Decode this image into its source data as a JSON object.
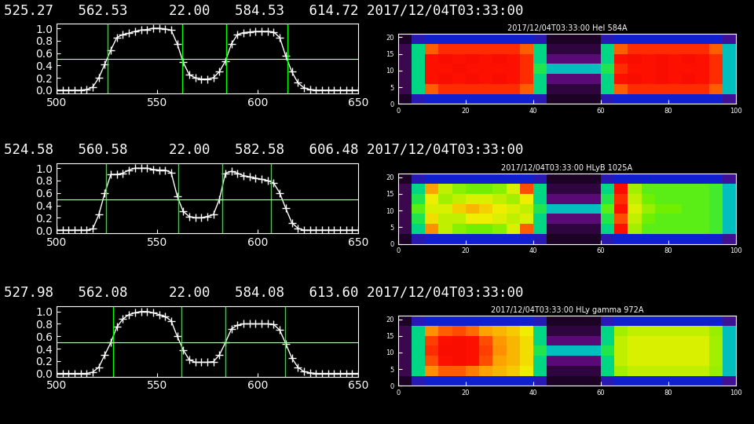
{
  "chart_data": [
    {
      "type": "line",
      "header": "525.27   562.53     22.00   584.53   614.72 2017/12/04T03:33:00",
      "x": [
        500,
        503,
        506,
        509,
        512,
        515,
        518,
        521,
        524,
        527,
        530,
        533,
        536,
        539,
        542,
        545,
        548,
        551,
        554,
        557,
        560,
        563,
        566,
        569,
        572,
        575,
        578,
        581,
        584,
        587,
        590,
        593,
        596,
        599,
        602,
        605,
        608,
        611,
        614,
        617,
        620,
        623,
        626,
        629,
        632,
        635,
        638,
        641,
        644,
        647,
        650
      ],
      "values": [
        0,
        0,
        0,
        0,
        0,
        0.01,
        0.05,
        0.2,
        0.42,
        0.65,
        0.85,
        0.9,
        0.92,
        0.95,
        0.97,
        0.98,
        1.0,
        1.0,
        0.99,
        0.97,
        0.75,
        0.45,
        0.25,
        0.2,
        0.18,
        0.18,
        0.2,
        0.3,
        0.47,
        0.75,
        0.9,
        0.93,
        0.94,
        0.95,
        0.95,
        0.95,
        0.94,
        0.85,
        0.55,
        0.3,
        0.12,
        0.04,
        0.01,
        0,
        0,
        0,
        0,
        0,
        0,
        0,
        0
      ],
      "vlines": [
        525.27,
        562.53,
        584.53,
        614.72
      ],
      "hlines": [
        0.5
      ],
      "color": "#ffffff",
      "marker": "plus",
      "line_style": "solid",
      "xlim": [
        500,
        650
      ],
      "ylim": [
        -0.05,
        1.08
      ],
      "xticks": [
        500,
        550,
        600,
        650
      ],
      "yticks": [
        {
          "value": 0,
          "label": "0.0"
        },
        {
          "value": 0.2,
          "label": "0.2"
        },
        {
          "value": 0.4,
          "label": "0.4"
        },
        {
          "value": 0.6,
          "label": "0.6"
        },
        {
          "value": 0.8,
          "label": "0.8"
        },
        {
          "value": 1,
          "label": "1.0"
        }
      ]
    },
    {
      "type": "heatmap",
      "title": "2017/12/04T03:33:00 HeI 584A",
      "x_edges": [
        0,
        4,
        8,
        12,
        16,
        20,
        24,
        28,
        32,
        36,
        40,
        44,
        48,
        52,
        56,
        60,
        64,
        68,
        72,
        76,
        80,
        84,
        88,
        92,
        96,
        100
      ],
      "y_edges": [
        0,
        3,
        6,
        9,
        12,
        15,
        18,
        21
      ],
      "cells": [
        [
          0.05,
          0.25,
          0.3,
          0.3,
          0.3,
          0.3,
          0.3,
          0.3,
          0.3,
          0.3,
          0.25,
          0.05,
          0.05,
          0.05,
          0.05,
          0.25,
          0.3,
          0.3,
          0.3,
          0.3,
          0.3,
          0.3,
          0.3,
          0.3,
          0.2
        ],
        [
          0.1,
          0.5,
          0.85,
          0.88,
          0.88,
          0.88,
          0.88,
          0.88,
          0.88,
          0.85,
          0.5,
          0.08,
          0.08,
          0.08,
          0.08,
          0.5,
          0.85,
          0.88,
          0.88,
          0.88,
          0.88,
          0.88,
          0.88,
          0.85,
          0.45
        ],
        [
          0.1,
          0.5,
          0.9,
          0.92,
          0.9,
          0.92,
          0.9,
          0.92,
          0.9,
          0.88,
          0.5,
          0.15,
          0.15,
          0.15,
          0.15,
          0.5,
          0.9,
          0.92,
          0.9,
          0.92,
          0.9,
          0.92,
          0.9,
          0.88,
          0.45
        ],
        [
          0.1,
          0.5,
          0.9,
          0.9,
          0.92,
          0.9,
          0.9,
          0.9,
          0.9,
          0.88,
          0.55,
          0.45,
          0.45,
          0.45,
          0.45,
          0.55,
          0.88,
          0.9,
          0.9,
          0.92,
          0.9,
          0.9,
          0.9,
          0.88,
          0.45
        ],
        [
          0.1,
          0.5,
          0.9,
          0.92,
          0.9,
          0.92,
          0.9,
          0.92,
          0.9,
          0.88,
          0.5,
          0.15,
          0.15,
          0.15,
          0.15,
          0.5,
          0.9,
          0.92,
          0.9,
          0.92,
          0.9,
          0.92,
          0.9,
          0.88,
          0.45
        ],
        [
          0.1,
          0.5,
          0.85,
          0.88,
          0.88,
          0.88,
          0.88,
          0.88,
          0.88,
          0.85,
          0.5,
          0.08,
          0.08,
          0.08,
          0.08,
          0.5,
          0.85,
          0.88,
          0.88,
          0.88,
          0.88,
          0.88,
          0.88,
          0.85,
          0.45
        ],
        [
          0.05,
          0.25,
          0.3,
          0.3,
          0.3,
          0.3,
          0.3,
          0.3,
          0.3,
          0.3,
          0.25,
          0.05,
          0.05,
          0.05,
          0.05,
          0.25,
          0.3,
          0.3,
          0.3,
          0.3,
          0.3,
          0.3,
          0.3,
          0.3,
          0.2
        ]
      ],
      "zlim": [
        0,
        1
      ],
      "xlim": [
        0,
        100
      ],
      "ylim": [
        0,
        21
      ],
      "xticks": [
        0,
        20,
        40,
        60,
        80,
        100
      ],
      "yticks": [
        0,
        5,
        10,
        15,
        20
      ]
    },
    {
      "type": "line",
      "header": "524.58   560.58     22.00   582.58   606.48 2017/12/04T03:33:00",
      "x": [
        500,
        503,
        506,
        509,
        512,
        515,
        518,
        521,
        524,
        527,
        530,
        533,
        536,
        539,
        542,
        545,
        548,
        551,
        554,
        557,
        560,
        563,
        566,
        569,
        572,
        575,
        578,
        581,
        584,
        587,
        590,
        593,
        596,
        599,
        602,
        605,
        608,
        611,
        614,
        617,
        620,
        623,
        626,
        629,
        632,
        635,
        638,
        641,
        644,
        647,
        650
      ],
      "values": [
        0,
        0,
        0,
        0,
        0,
        0,
        0.02,
        0.25,
        0.6,
        0.9,
        0.9,
        0.92,
        0.97,
        1.0,
        1.0,
        1.0,
        0.98,
        0.97,
        0.97,
        0.93,
        0.55,
        0.3,
        0.22,
        0.2,
        0.2,
        0.22,
        0.25,
        0.5,
        0.92,
        0.95,
        0.92,
        0.88,
        0.86,
        0.84,
        0.82,
        0.8,
        0.76,
        0.6,
        0.35,
        0.12,
        0.03,
        0,
        0,
        0,
        0,
        0,
        0,
        0,
        0,
        0,
        0
      ],
      "vlines": [
        524.58,
        560.58,
        582.58,
        606.48
      ],
      "hlines": [
        0.5
      ],
      "color": "#ffffff",
      "marker": "plus",
      "line_style": "solid",
      "xlim": [
        500,
        650
      ],
      "ylim": [
        -0.05,
        1.08
      ],
      "xticks": [
        500,
        550,
        600,
        650
      ],
      "yticks": [
        {
          "value": 0,
          "label": "0.0"
        },
        {
          "value": 0.2,
          "label": "0.2"
        },
        {
          "value": 0.4,
          "label": "0.4"
        },
        {
          "value": 0.6,
          "label": "0.6"
        },
        {
          "value": 0.8,
          "label": "0.8"
        },
        {
          "value": 1,
          "label": "1.0"
        }
      ]
    },
    {
      "type": "heatmap",
      "title": "2017/12/04T03:33:00 HLyB 1025A",
      "x_edges": [
        0,
        4,
        8,
        12,
        16,
        20,
        24,
        28,
        32,
        36,
        40,
        44,
        48,
        52,
        56,
        60,
        64,
        68,
        72,
        76,
        80,
        84,
        88,
        92,
        96,
        100
      ],
      "y_edges": [
        0,
        3,
        6,
        9,
        12,
        15,
        18,
        21
      ],
      "cells": [
        [
          0.05,
          0.25,
          0.3,
          0.3,
          0.3,
          0.3,
          0.3,
          0.3,
          0.3,
          0.3,
          0.25,
          0.05,
          0.05,
          0.05,
          0.05,
          0.25,
          0.3,
          0.3,
          0.3,
          0.3,
          0.3,
          0.3,
          0.3,
          0.3,
          0.2
        ],
        [
          0.1,
          0.5,
          0.82,
          0.68,
          0.64,
          0.62,
          0.62,
          0.64,
          0.7,
          0.85,
          0.5,
          0.08,
          0.08,
          0.08,
          0.08,
          0.5,
          0.9,
          0.66,
          0.6,
          0.6,
          0.6,
          0.6,
          0.6,
          0.58,
          0.45
        ],
        [
          0.1,
          0.55,
          0.74,
          0.68,
          0.68,
          0.72,
          0.72,
          0.7,
          0.68,
          0.7,
          0.5,
          0.15,
          0.15,
          0.15,
          0.15,
          0.55,
          0.86,
          0.68,
          0.62,
          0.6,
          0.6,
          0.6,
          0.6,
          0.58,
          0.45
        ],
        [
          0.1,
          0.6,
          0.7,
          0.7,
          0.75,
          0.78,
          0.75,
          0.72,
          0.7,
          0.68,
          0.55,
          0.45,
          0.45,
          0.45,
          0.45,
          0.6,
          0.9,
          0.7,
          0.65,
          0.62,
          0.62,
          0.6,
          0.6,
          0.58,
          0.45
        ],
        [
          0.1,
          0.55,
          0.72,
          0.66,
          0.68,
          0.7,
          0.7,
          0.68,
          0.66,
          0.72,
          0.5,
          0.15,
          0.15,
          0.15,
          0.15,
          0.55,
          0.88,
          0.68,
          0.62,
          0.6,
          0.6,
          0.6,
          0.6,
          0.58,
          0.45
        ],
        [
          0.1,
          0.5,
          0.8,
          0.68,
          0.64,
          0.62,
          0.62,
          0.64,
          0.7,
          0.86,
          0.5,
          0.08,
          0.08,
          0.08,
          0.08,
          0.5,
          0.92,
          0.66,
          0.6,
          0.6,
          0.6,
          0.6,
          0.6,
          0.58,
          0.45
        ],
        [
          0.05,
          0.25,
          0.3,
          0.3,
          0.3,
          0.3,
          0.3,
          0.3,
          0.3,
          0.3,
          0.25,
          0.05,
          0.05,
          0.05,
          0.05,
          0.25,
          0.3,
          0.3,
          0.3,
          0.3,
          0.3,
          0.3,
          0.3,
          0.3,
          0.2
        ]
      ],
      "zlim": [
        0,
        1
      ],
      "xlim": [
        0,
        100
      ],
      "ylim": [
        0,
        21
      ],
      "xticks": [
        0,
        20,
        40,
        60,
        80,
        100
      ],
      "yticks": [
        0,
        5,
        10,
        15,
        20
      ]
    },
    {
      "type": "line",
      "header": "527.98   562.08     22.00   584.08   613.60 2017/12/04T03:33:00",
      "x": [
        500,
        503,
        506,
        509,
        512,
        515,
        518,
        521,
        524,
        527,
        530,
        533,
        536,
        539,
        542,
        545,
        548,
        551,
        554,
        557,
        560,
        563,
        566,
        569,
        572,
        575,
        578,
        581,
        584,
        587,
        590,
        593,
        596,
        599,
        602,
        605,
        608,
        611,
        614,
        617,
        620,
        623,
        626,
        629,
        632,
        635,
        638,
        641,
        644,
        647,
        650
      ],
      "values": [
        0,
        0,
        0,
        0,
        0,
        0,
        0.02,
        0.1,
        0.3,
        0.5,
        0.75,
        0.88,
        0.95,
        0.98,
        1.0,
        1.0,
        0.98,
        0.95,
        0.92,
        0.85,
        0.6,
        0.38,
        0.22,
        0.18,
        0.18,
        0.18,
        0.19,
        0.3,
        0.5,
        0.72,
        0.78,
        0.8,
        0.8,
        0.8,
        0.8,
        0.8,
        0.79,
        0.7,
        0.48,
        0.25,
        0.1,
        0.03,
        0.01,
        0,
        0,
        0,
        0,
        0,
        0,
        0,
        0
      ],
      "vlines": [
        527.98,
        562.08,
        584.08,
        613.6
      ],
      "hlines": [
        0.5
      ],
      "color": "#ffffff",
      "marker": "plus",
      "line_style": "solid",
      "xlim": [
        500,
        650
      ],
      "ylim": [
        -0.05,
        1.08
      ],
      "xticks": [
        500,
        550,
        600,
        650
      ],
      "yticks": [
        {
          "value": 0,
          "label": "0.0"
        },
        {
          "value": 0.2,
          "label": "0.2"
        },
        {
          "value": 0.4,
          "label": "0.4"
        },
        {
          "value": 0.6,
          "label": "0.6"
        },
        {
          "value": 0.8,
          "label": "0.8"
        },
        {
          "value": 1,
          "label": "1.0"
        }
      ]
    },
    {
      "type": "heatmap",
      "title": "2017/12/04T03:33:00 HLy gamma 972A",
      "x_edges": [
        0,
        4,
        8,
        12,
        16,
        20,
        24,
        28,
        32,
        36,
        40,
        44,
        48,
        52,
        56,
        60,
        64,
        68,
        72,
        76,
        80,
        84,
        88,
        92,
        96,
        100
      ],
      "y_edges": [
        0,
        3,
        6,
        9,
        12,
        15,
        18,
        21
      ],
      "cells": [
        [
          0.05,
          0.25,
          0.3,
          0.3,
          0.3,
          0.3,
          0.3,
          0.3,
          0.3,
          0.3,
          0.25,
          0.05,
          0.05,
          0.05,
          0.05,
          0.25,
          0.3,
          0.3,
          0.3,
          0.3,
          0.3,
          0.3,
          0.3,
          0.3,
          0.2
        ],
        [
          0.1,
          0.5,
          0.82,
          0.85,
          0.85,
          0.83,
          0.8,
          0.78,
          0.76,
          0.72,
          0.5,
          0.08,
          0.08,
          0.08,
          0.08,
          0.5,
          0.66,
          0.68,
          0.68,
          0.68,
          0.68,
          0.68,
          0.68,
          0.65,
          0.45
        ],
        [
          0.1,
          0.5,
          0.86,
          0.9,
          0.92,
          0.9,
          0.86,
          0.8,
          0.78,
          0.74,
          0.5,
          0.15,
          0.15,
          0.15,
          0.15,
          0.5,
          0.68,
          0.7,
          0.7,
          0.7,
          0.7,
          0.7,
          0.7,
          0.66,
          0.45
        ],
        [
          0.1,
          0.5,
          0.88,
          0.92,
          0.92,
          0.9,
          0.87,
          0.82,
          0.78,
          0.74,
          0.55,
          0.45,
          0.45,
          0.45,
          0.45,
          0.55,
          0.68,
          0.7,
          0.7,
          0.7,
          0.7,
          0.7,
          0.7,
          0.66,
          0.45
        ],
        [
          0.1,
          0.5,
          0.87,
          0.91,
          0.92,
          0.9,
          0.86,
          0.81,
          0.78,
          0.74,
          0.5,
          0.15,
          0.15,
          0.15,
          0.15,
          0.5,
          0.68,
          0.7,
          0.7,
          0.7,
          0.7,
          0.7,
          0.7,
          0.66,
          0.45
        ],
        [
          0.1,
          0.5,
          0.82,
          0.85,
          0.86,
          0.84,
          0.8,
          0.78,
          0.76,
          0.72,
          0.5,
          0.08,
          0.08,
          0.08,
          0.08,
          0.5,
          0.66,
          0.68,
          0.68,
          0.68,
          0.68,
          0.68,
          0.68,
          0.65,
          0.45
        ],
        [
          0.05,
          0.25,
          0.3,
          0.3,
          0.3,
          0.3,
          0.3,
          0.3,
          0.3,
          0.3,
          0.25,
          0.05,
          0.05,
          0.05,
          0.05,
          0.25,
          0.3,
          0.3,
          0.3,
          0.3,
          0.3,
          0.3,
          0.3,
          0.3,
          0.2
        ]
      ],
      "zlim": [
        0,
        1
      ],
      "xlim": [
        0,
        100
      ],
      "ylim": [
        0,
        21
      ],
      "xticks": [
        0,
        20,
        40,
        60,
        80,
        100
      ],
      "yticks": [
        0,
        5,
        10,
        15,
        20
      ]
    }
  ]
}
